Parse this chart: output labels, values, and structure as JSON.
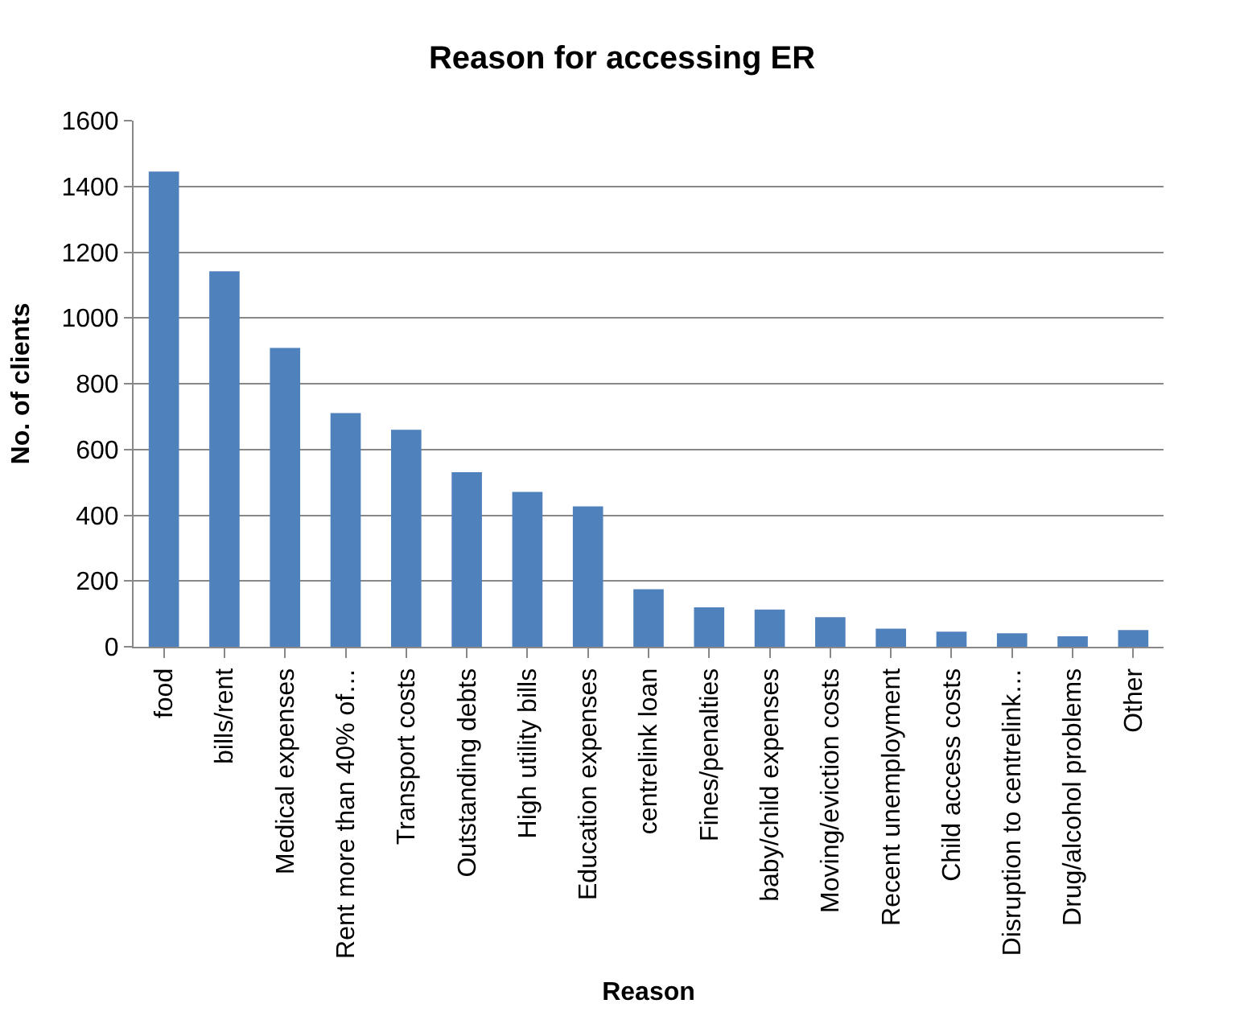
{
  "chart_data": {
    "type": "bar",
    "title": "Reason for accessing ER",
    "xlabel": "Reason",
    "ylabel": "No. of clients",
    "categories": [
      "food",
      "bills/rent",
      "Medical expenses",
      "Rent more than 40% of…",
      "Transport costs",
      "Outstanding debts",
      "High utility bills",
      "Education expenses",
      "centrelink loan",
      "Fines/penalties",
      "baby/child expenses",
      "Moving/eviction costs",
      "Recent unemployment",
      "Child access costs",
      "Disruption to centrelink…",
      "Drug/alcohol problems",
      "Other"
    ],
    "values": [
      1445,
      1142,
      909,
      711,
      660,
      531,
      471,
      427,
      175,
      120,
      113,
      90,
      55,
      46,
      41,
      32,
      51
    ],
    "color": "#4f81bd",
    "ylim": [
      0,
      1600
    ],
    "yticks": [
      0,
      200,
      400,
      600,
      800,
      1000,
      1200,
      1400,
      1600
    ],
    "grid": "y"
  }
}
